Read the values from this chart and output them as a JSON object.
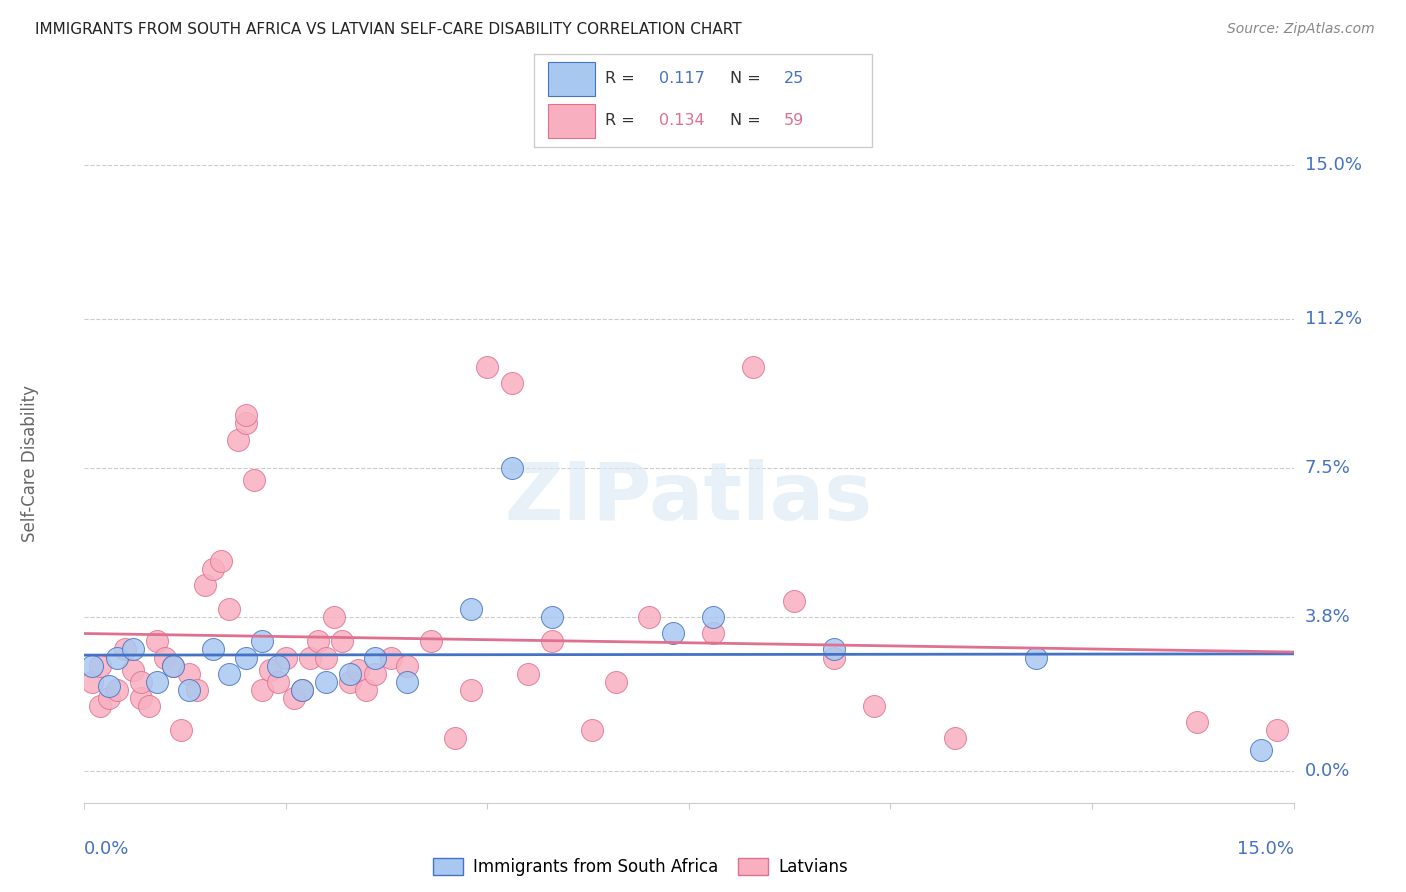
{
  "title": "IMMIGRANTS FROM SOUTH AFRICA VS LATVIAN SELF-CARE DISABILITY CORRELATION CHART",
  "source": "Source: ZipAtlas.com",
  "ylabel": "Self-Care Disability",
  "xlim": [
    0.0,
    0.15
  ],
  "ylim": [
    -0.008,
    0.16
  ],
  "blue_r": "0.117",
  "blue_n": "25",
  "pink_r": "0.134",
  "pink_n": "59",
  "blue_color": "#a8c8f0",
  "pink_color": "#f8b0c0",
  "blue_line_color": "#4472c4",
  "pink_line_color": "#e07090",
  "watermark": "ZIPatlas",
  "ytick_positions": [
    0.0,
    0.038,
    0.075,
    0.112,
    0.15
  ],
  "ytick_labels": [
    "0.0%",
    "3.8%",
    "7.5%",
    "11.2%",
    "15.0%"
  ],
  "xtick_positions": [
    0.0,
    0.025,
    0.05,
    0.075,
    0.1,
    0.125,
    0.15
  ],
  "blue_points": [
    [
      0.001,
      0.026
    ],
    [
      0.003,
      0.021
    ],
    [
      0.004,
      0.028
    ],
    [
      0.006,
      0.03
    ],
    [
      0.009,
      0.022
    ],
    [
      0.011,
      0.026
    ],
    [
      0.013,
      0.02
    ],
    [
      0.016,
      0.03
    ],
    [
      0.018,
      0.024
    ],
    [
      0.02,
      0.028
    ],
    [
      0.022,
      0.032
    ],
    [
      0.024,
      0.026
    ],
    [
      0.027,
      0.02
    ],
    [
      0.03,
      0.022
    ],
    [
      0.033,
      0.024
    ],
    [
      0.036,
      0.028
    ],
    [
      0.04,
      0.022
    ],
    [
      0.048,
      0.04
    ],
    [
      0.053,
      0.075
    ],
    [
      0.058,
      0.038
    ],
    [
      0.073,
      0.034
    ],
    [
      0.078,
      0.038
    ],
    [
      0.093,
      0.03
    ],
    [
      0.118,
      0.028
    ],
    [
      0.146,
      0.005
    ]
  ],
  "pink_points": [
    [
      0.001,
      0.022
    ],
    [
      0.002,
      0.016
    ],
    [
      0.002,
      0.026
    ],
    [
      0.003,
      0.018
    ],
    [
      0.004,
      0.02
    ],
    [
      0.005,
      0.03
    ],
    [
      0.006,
      0.025
    ],
    [
      0.007,
      0.018
    ],
    [
      0.007,
      0.022
    ],
    [
      0.008,
      0.016
    ],
    [
      0.009,
      0.032
    ],
    [
      0.01,
      0.028
    ],
    [
      0.011,
      0.026
    ],
    [
      0.012,
      0.01
    ],
    [
      0.013,
      0.024
    ],
    [
      0.014,
      0.02
    ],
    [
      0.015,
      0.046
    ],
    [
      0.016,
      0.05
    ],
    [
      0.017,
      0.052
    ],
    [
      0.018,
      0.04
    ],
    [
      0.019,
      0.082
    ],
    [
      0.02,
      0.086
    ],
    [
      0.02,
      0.088
    ],
    [
      0.021,
      0.072
    ],
    [
      0.022,
      0.02
    ],
    [
      0.023,
      0.025
    ],
    [
      0.024,
      0.022
    ],
    [
      0.025,
      0.028
    ],
    [
      0.026,
      0.018
    ],
    [
      0.027,
      0.02
    ],
    [
      0.028,
      0.028
    ],
    [
      0.029,
      0.032
    ],
    [
      0.03,
      0.028
    ],
    [
      0.031,
      0.038
    ],
    [
      0.032,
      0.032
    ],
    [
      0.033,
      0.022
    ],
    [
      0.034,
      0.025
    ],
    [
      0.035,
      0.02
    ],
    [
      0.036,
      0.024
    ],
    [
      0.038,
      0.028
    ],
    [
      0.04,
      0.026
    ],
    [
      0.043,
      0.032
    ],
    [
      0.046,
      0.008
    ],
    [
      0.048,
      0.02
    ],
    [
      0.05,
      0.1
    ],
    [
      0.053,
      0.096
    ],
    [
      0.055,
      0.024
    ],
    [
      0.058,
      0.032
    ],
    [
      0.063,
      0.01
    ],
    [
      0.066,
      0.022
    ],
    [
      0.07,
      0.038
    ],
    [
      0.078,
      0.034
    ],
    [
      0.083,
      0.1
    ],
    [
      0.088,
      0.042
    ],
    [
      0.093,
      0.028
    ],
    [
      0.098,
      0.016
    ],
    [
      0.108,
      0.008
    ],
    [
      0.138,
      0.012
    ],
    [
      0.148,
      0.01
    ]
  ]
}
